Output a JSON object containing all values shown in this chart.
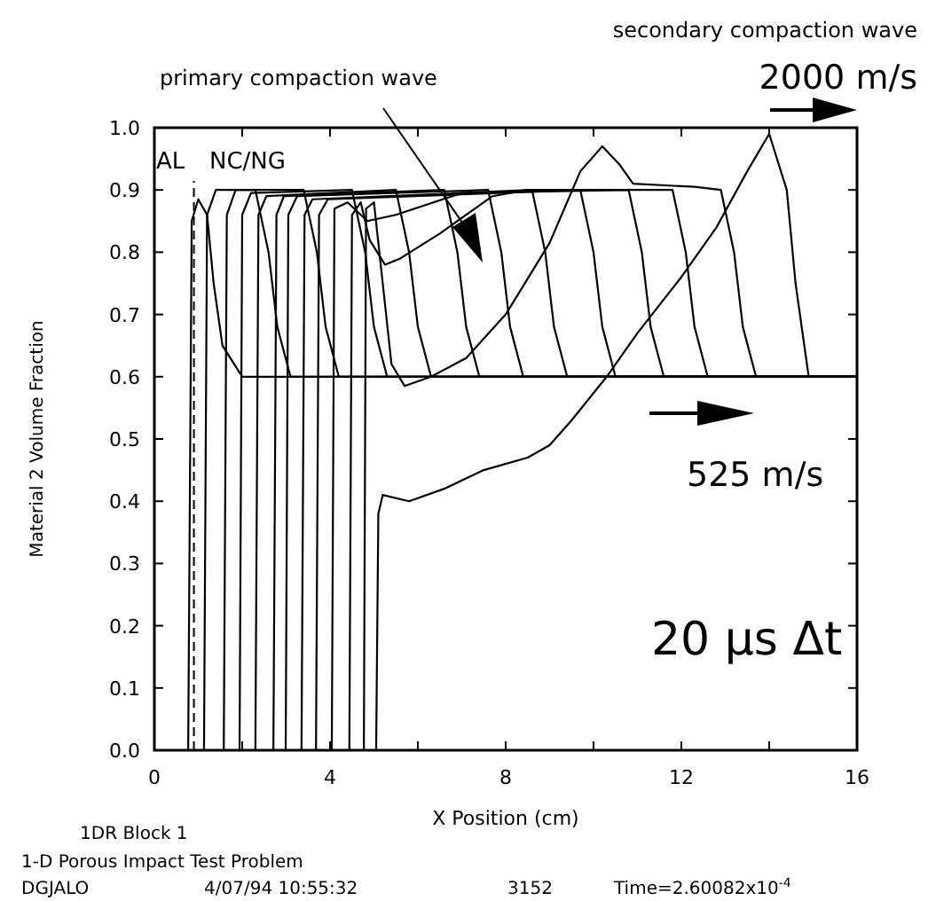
{
  "chart_data": {
    "type": "line",
    "xlabel": "X Position (cm)",
    "ylabel": "Material 2 Volume Fraction",
    "xlim": [
      0,
      16
    ],
    "ylim": [
      0,
      1
    ],
    "xticks": [
      0,
      {
        "value": 2,
        "label": null
      },
      4,
      {
        "value": 6,
        "label": null
      },
      8,
      {
        "value": 10,
        "label": null
      },
      12,
      {
        "value": 14,
        "label": null
      },
      16
    ],
    "yticks": [
      {
        "value": 0,
        "label": "0.0"
      },
      {
        "value": 0.1,
        "label": "0.1"
      },
      {
        "value": 0.2,
        "label": "0.2"
      },
      {
        "value": 0.3,
        "label": "0.3"
      },
      {
        "value": 0.4,
        "label": "0.4"
      },
      {
        "value": 0.5,
        "label": "0.5"
      },
      {
        "value": 0.6,
        "label": "0.6"
      },
      {
        "value": 0.7,
        "label": "0.7"
      },
      {
        "value": 0.8,
        "label": "0.8"
      },
      {
        "value": 0.9,
        "label": "0.9"
      },
      {
        "value": 1,
        "label": "1.0"
      }
    ],
    "grid": false,
    "marker": "none",
    "line_style": "solid",
    "ref_lines": [
      {
        "axis": "x",
        "value": 0.9,
        "line_style": "dashed",
        "color": "#000000"
      }
    ],
    "series": [
      {
        "color": "#000000",
        "x": [
          0,
          0.77,
          0.85,
          1.0,
          1.2,
          1.35,
          1.55,
          2.0,
          16
        ],
        "values": [
          0,
          0,
          0.85,
          0.885,
          0.86,
          0.75,
          0.65,
          0.6,
          0.6
        ]
      },
      {
        "color": "#000000",
        "x": [
          0,
          1.13,
          1.2,
          1.4,
          2.3,
          2.6,
          2.8,
          3.1,
          16
        ],
        "values": [
          0,
          0,
          0.86,
          0.9,
          0.9,
          0.8,
          0.68,
          0.6,
          0.6
        ]
      },
      {
        "color": "#000000",
        "x": [
          0,
          1.58,
          1.65,
          1.85,
          3.4,
          3.7,
          3.9,
          4.2,
          16
        ],
        "values": [
          0,
          0,
          0.86,
          0.9,
          0.9,
          0.8,
          0.68,
          0.6,
          0.6
        ]
      },
      {
        "color": "#000000",
        "x": [
          0,
          1.94,
          2.0,
          2.2,
          4.5,
          4.8,
          5.0,
          5.3,
          16
        ],
        "values": [
          0,
          0,
          0.86,
          0.895,
          0.9,
          0.8,
          0.68,
          0.6,
          0.6
        ]
      },
      {
        "color": "#000000",
        "x": [
          0,
          2.3,
          2.37,
          2.55,
          5.5,
          5.8,
          6.0,
          6.3,
          16
        ],
        "values": [
          0,
          0,
          0.86,
          0.89,
          0.9,
          0.8,
          0.68,
          0.6,
          0.6
        ]
      },
      {
        "color": "#000000",
        "x": [
          0,
          2.71,
          2.78,
          2.95,
          6.6,
          6.9,
          7.1,
          7.4,
          16
        ],
        "values": [
          0,
          0,
          0.86,
          0.89,
          0.9,
          0.8,
          0.68,
          0.6,
          0.6
        ]
      },
      {
        "color": "#000000",
        "x": [
          0,
          2.99,
          3.05,
          3.25,
          7.6,
          7.9,
          8.1,
          8.4,
          16
        ],
        "values": [
          0,
          0,
          0.86,
          0.89,
          0.9,
          0.8,
          0.68,
          0.6,
          0.6
        ]
      },
      {
        "color": "#000000",
        "x": [
          0,
          3.35,
          3.42,
          3.6,
          8.6,
          8.9,
          9.1,
          9.4,
          16
        ],
        "values": [
          0,
          0,
          0.86,
          0.885,
          0.9,
          0.8,
          0.68,
          0.6,
          0.6
        ]
      },
      {
        "color": "#000000",
        "x": [
          0,
          3.68,
          3.75,
          3.95,
          9.7,
          10.0,
          10.2,
          10.5,
          16
        ],
        "values": [
          0,
          0,
          0.86,
          0.885,
          0.9,
          0.8,
          0.68,
          0.6,
          0.6
        ]
      },
      {
        "color": "#000000",
        "x": [
          0,
          4.04,
          4.1,
          4.4,
          4.85,
          5.5,
          7.0,
          10.8,
          11.1,
          11.3,
          11.6,
          16
        ],
        "values": [
          0,
          0,
          0.87,
          0.88,
          0.85,
          0.86,
          0.895,
          0.9,
          0.8,
          0.68,
          0.6,
          0.6
        ]
      },
      {
        "color": "#000000",
        "x": [
          0,
          4.44,
          4.5,
          4.7,
          4.9,
          5.25,
          5.6,
          6.5,
          7.7,
          8.5,
          11.8,
          12.1,
          12.3,
          12.6,
          16
        ],
        "values": [
          0,
          0,
          0.86,
          0.88,
          0.82,
          0.78,
          0.79,
          0.83,
          0.89,
          0.9,
          0.9,
          0.8,
          0.68,
          0.6,
          0.6
        ]
      },
      {
        "color": "#000000",
        "x": [
          0,
          4.77,
          4.82,
          5.0,
          5.2,
          5.4,
          5.7,
          6.3,
          7.1,
          8.0,
          9.0,
          9.7,
          10.2,
          10.6,
          10.9,
          12.3,
          12.9,
          13.2,
          13.4,
          13.7,
          16
        ],
        "values": [
          0,
          0,
          0.87,
          0.88,
          0.75,
          0.62,
          0.585,
          0.6,
          0.63,
          0.7,
          0.815,
          0.93,
          0.97,
          0.94,
          0.91,
          0.905,
          0.9,
          0.8,
          0.68,
          0.6,
          0.6
        ]
      },
      {
        "color": "#000000",
        "x": [
          0,
          5.05,
          5.1,
          5.2,
          5.8,
          6.6,
          7.5,
          8.5,
          9.0,
          9.5,
          10.3,
          11.0,
          12.0,
          12.8,
          13.5,
          14.0,
          14.4,
          14.6,
          14.9,
          16
        ],
        "values": [
          0,
          0,
          0.38,
          0.41,
          0.4,
          0.42,
          0.45,
          0.47,
          0.49,
          0.53,
          0.6,
          0.67,
          0.76,
          0.84,
          0.93,
          0.99,
          0.9,
          0.75,
          0.6,
          0.6
        ]
      }
    ],
    "annotations": [
      "secondary compaction wave",
      "2000 m/s",
      "primary compaction wave",
      "AL",
      "NC/NG",
      "525 m/s",
      "20 µs Δt",
      "1DR Block 1",
      "1-D Porous Impact Test Problem",
      "DGJALO",
      "4/07/94 10:55:32",
      "3152",
      "Time=2.60082x10$^{-4}$"
    ]
  }
}
